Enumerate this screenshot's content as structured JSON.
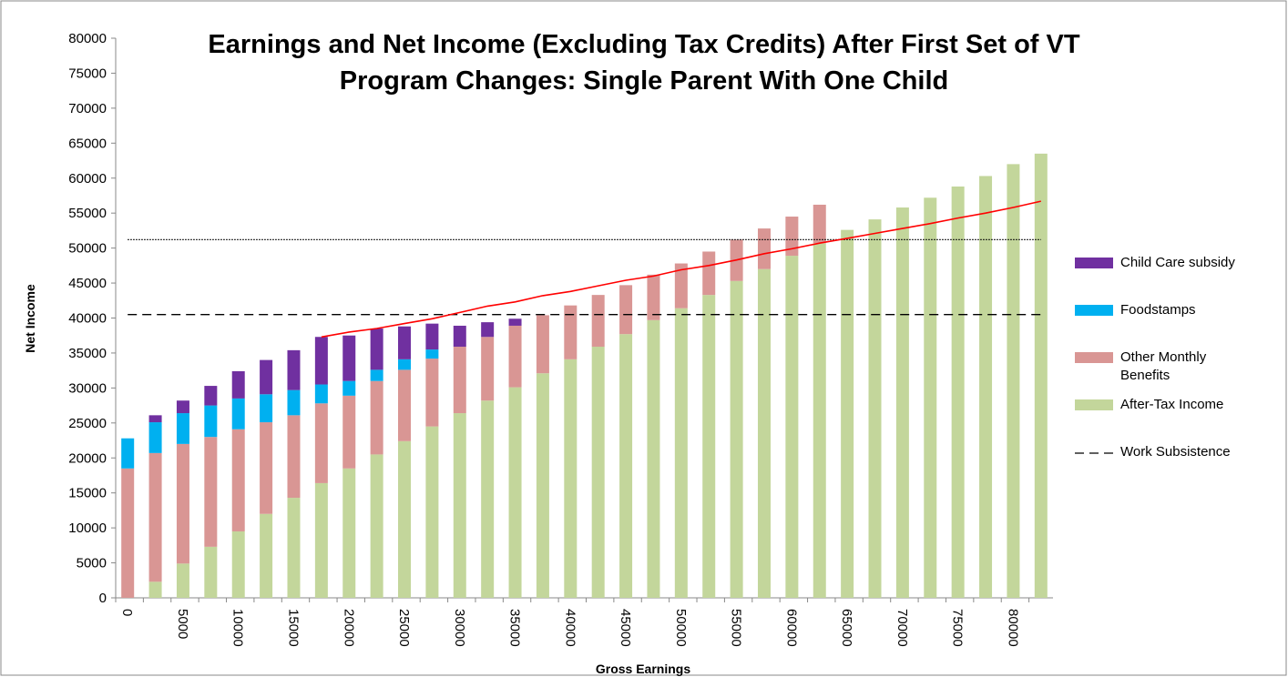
{
  "chart_data": {
    "type": "bar",
    "stacked": true,
    "title": [
      "Earnings and Net Income (Excluding Tax Credits) After First Set of VT",
      "Program Changes: Single Parent With One Child"
    ],
    "x_label": "Gross Earnings",
    "y_label": "Net Income",
    "categories": [
      "0",
      null,
      "5000",
      null,
      "10000",
      null,
      "15000",
      null,
      "20000",
      null,
      "25000",
      null,
      "30000",
      null,
      "35000",
      null,
      "40000",
      null,
      "45000",
      null,
      "50000",
      null,
      "55000",
      null,
      "60000",
      null,
      "65000",
      null,
      "70000",
      null,
      "75000",
      null,
      "80000",
      null
    ],
    "ylim": [
      0,
      80000
    ],
    "yticks": [
      0,
      5000,
      10000,
      15000,
      20000,
      25000,
      30000,
      35000,
      40000,
      45000,
      50000,
      55000,
      60000,
      65000,
      70000,
      75000,
      80000
    ],
    "legend": "right",
    "series": [
      {
        "name": "After-Tax Income",
        "kind": "bar",
        "color": "#c3d69b",
        "values": [
          0,
          2300,
          4900,
          7300,
          9500,
          12000,
          14300,
          16400,
          18500,
          20500,
          22400,
          24500,
          26400,
          28200,
          30100,
          32100,
          34100,
          35900,
          37700,
          39700,
          41400,
          43300,
          45300,
          47000,
          48900,
          50700,
          52600,
          54100,
          55800,
          57200,
          58800,
          60300,
          62000,
          63500
        ]
      },
      {
        "name": "Other Monthly Benefits",
        "kind": "bar",
        "color": "#d99694",
        "values": [
          18500,
          18400,
          17100,
          15700,
          14600,
          13100,
          11800,
          11400,
          10400,
          10500,
          10200,
          9700,
          9500,
          9100,
          8800,
          8300,
          7700,
          7400,
          7000,
          6500,
          6400,
          6200,
          5900,
          5800,
          5600,
          5500,
          0,
          0,
          0,
          0,
          0,
          0,
          0,
          0
        ]
      },
      {
        "name": "Foodstamps",
        "kind": "bar",
        "color": "#00b0f0",
        "values": [
          4300,
          4400,
          4400,
          4500,
          4400,
          4000,
          3600,
          2700,
          2100,
          1600,
          1500,
          1300,
          0,
          0,
          0,
          0,
          0,
          0,
          0,
          0,
          0,
          0,
          0,
          0,
          0,
          0,
          0,
          0,
          0,
          0,
          0,
          0,
          0,
          0
        ]
      },
      {
        "name": "Child Care subsidy",
        "kind": "bar",
        "color": "#7030a0",
        "values": [
          0,
          1000,
          1800,
          2800,
          3900,
          4900,
          5700,
          6800,
          6500,
          5900,
          4700,
          3700,
          3000,
          2100,
          1000,
          0,
          0,
          0,
          0,
          0,
          0,
          0,
          0,
          0,
          0,
          0,
          0,
          0,
          0,
          0,
          0,
          0,
          0,
          0
        ]
      },
      {
        "name": "Work Subsistence",
        "kind": "line",
        "dash": "dashed",
        "color": "#000000",
        "values": [
          40500,
          40500,
          40500,
          40500,
          40500,
          40500,
          40500,
          40500,
          40500,
          40500,
          40500,
          40500,
          40500,
          40500,
          40500,
          40500,
          40500,
          40500,
          40500,
          40500,
          40500,
          40500,
          40500,
          40500,
          40500,
          40500,
          40500,
          40500,
          40500,
          40500,
          40500,
          40500,
          40500,
          40500
        ]
      },
      {
        "kind": "line",
        "dash": "dotted",
        "color": "#000000",
        "values": [
          51200,
          51200,
          51200,
          51200,
          51200,
          51200,
          51200,
          51200,
          51200,
          51200,
          51200,
          51200,
          51200,
          51200,
          51200,
          51200,
          51200,
          51200,
          51200,
          51200,
          51200,
          51200,
          51200,
          51200,
          51200,
          51200,
          51200,
          51200,
          51200,
          51200,
          51200,
          51200,
          51200,
          51200
        ]
      },
      {
        "kind": "line",
        "dash": "solid",
        "color": "#ff0000",
        "values": [
          null,
          null,
          null,
          null,
          null,
          null,
          null,
          37300,
          38000,
          38500,
          39200,
          39900,
          40800,
          41700,
          42300,
          43200,
          43800,
          44600,
          45400,
          46000,
          46900,
          47500,
          48300,
          49200,
          49900,
          50700,
          51400,
          52100,
          52800,
          53500,
          54300,
          55000,
          55800,
          56700
        ]
      }
    ]
  }
}
